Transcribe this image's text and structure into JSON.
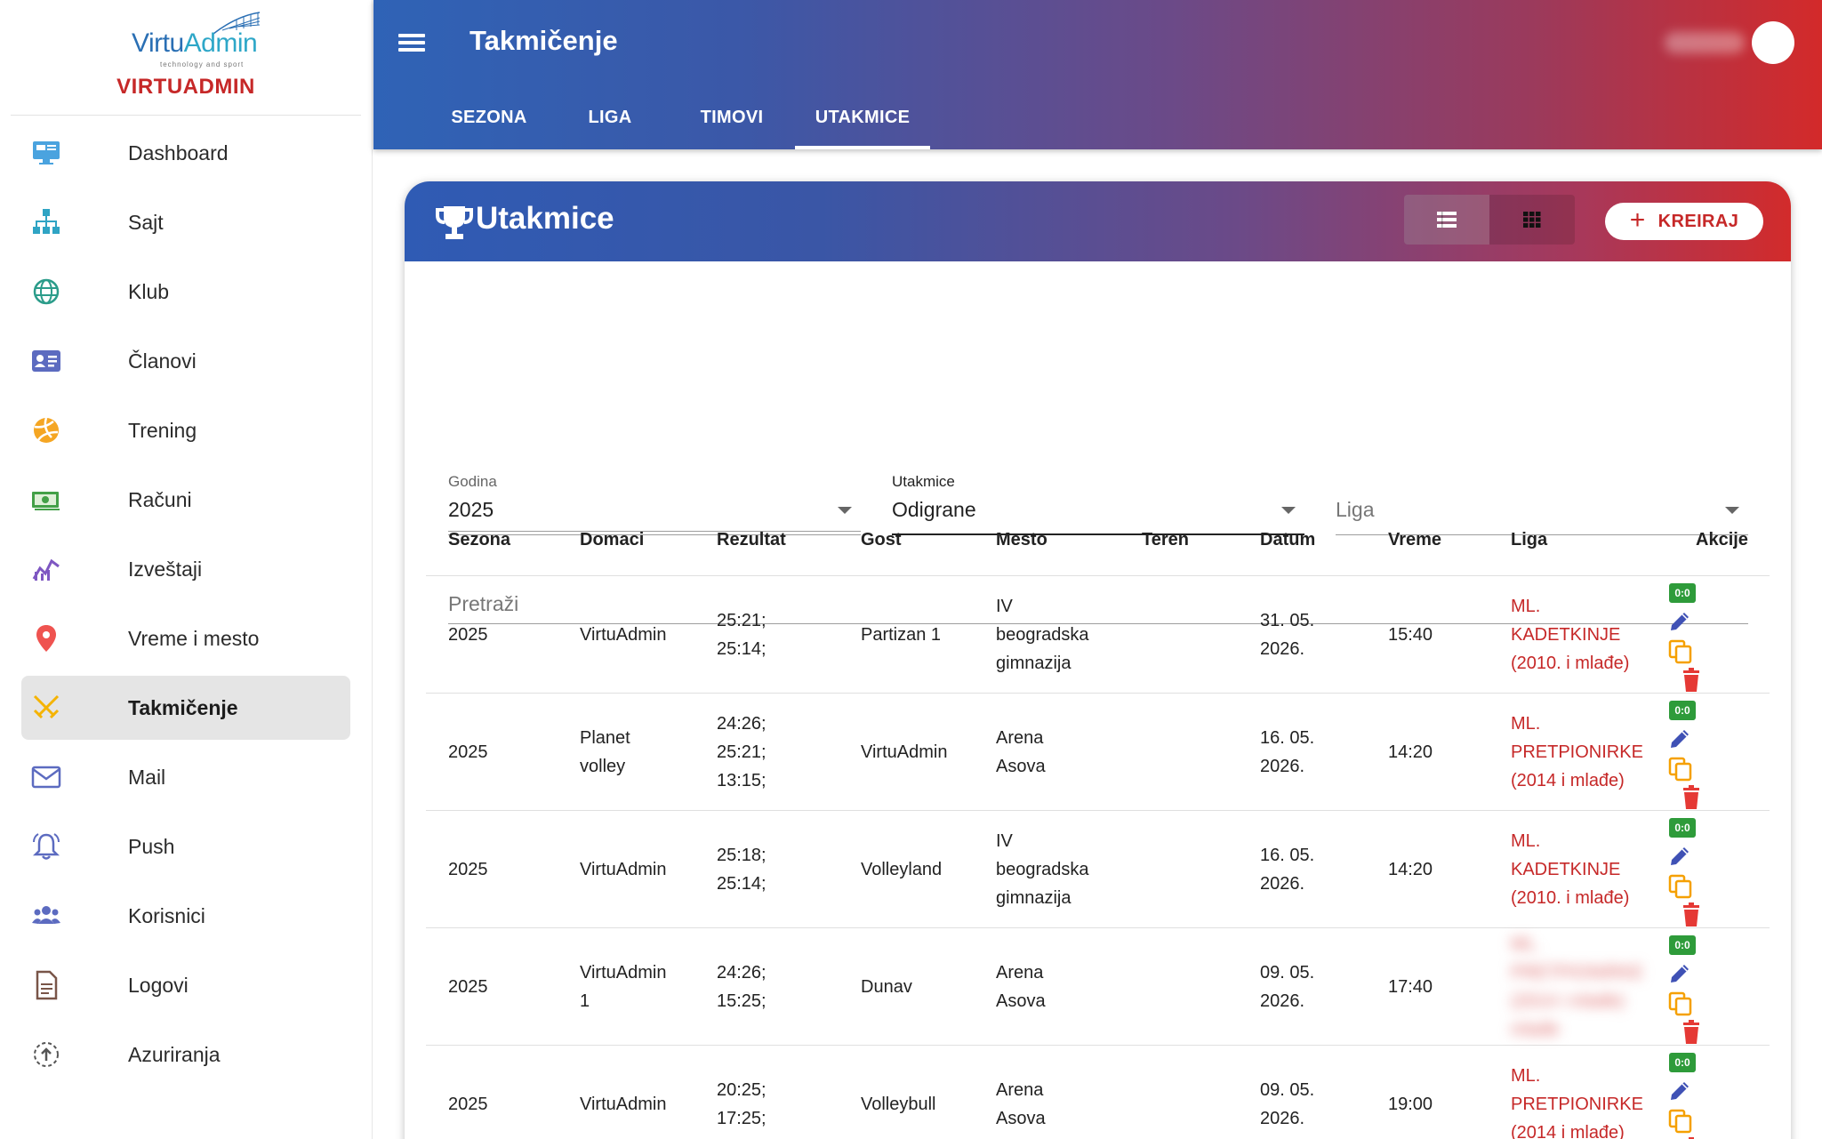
{
  "brand": {
    "logo_text_a": "Virtu",
    "logo_text_b": "Admin",
    "logo_tagline": "technology and sport",
    "name": "VIRTUADMIN"
  },
  "sidebar": {
    "items": [
      {
        "label": "Dashboard",
        "icon": "monitor-icon",
        "color": "#4aa3df"
      },
      {
        "label": "Sajt",
        "icon": "sitemap-icon",
        "color": "#2fa4c4"
      },
      {
        "label": "Klub",
        "icon": "globe-icon",
        "color": "#2b9c8a"
      },
      {
        "label": "Članovi",
        "icon": "id-card-icon",
        "color": "#5c6bc0"
      },
      {
        "label": "Trening",
        "icon": "volleyball-icon",
        "color": "#f5a623"
      },
      {
        "label": "Računi",
        "icon": "money-icon",
        "color": "#43a047"
      },
      {
        "label": "Izveštaji",
        "icon": "chart-icon",
        "color": "#7e57c2"
      },
      {
        "label": "Vreme i mesto",
        "icon": "location-pin-icon",
        "color": "#ef5350"
      },
      {
        "label": "Takmičenje",
        "icon": "crossed-swords-icon",
        "color": "#f5b300"
      },
      {
        "label": "Mail",
        "icon": "mail-icon",
        "color": "#5c6bc0"
      },
      {
        "label": "Push",
        "icon": "bell-icon",
        "color": "#5c6bc0"
      },
      {
        "label": "Korisnici",
        "icon": "users-icon",
        "color": "#5c6bc0"
      },
      {
        "label": "Logovi",
        "icon": "document-icon",
        "color": "#795548"
      },
      {
        "label": "Azuriranja",
        "icon": "update-icon",
        "color": "#555"
      }
    ],
    "active_index": 8
  },
  "header": {
    "title": "Takmičenje",
    "tabs": [
      "SEZONA",
      "LIGA",
      "TIMOVI",
      "UTAKMICE"
    ],
    "active_tab": "UTAKMICE"
  },
  "card": {
    "title": "Utakmice",
    "create_label": "KREIRAJ"
  },
  "filters": {
    "year": {
      "label": "Godina",
      "value": "2025"
    },
    "matches": {
      "label": "Utakmice",
      "value": "Odigrane"
    },
    "league": {
      "placeholder": "Liga"
    },
    "search": {
      "placeholder": "Pretraži"
    }
  },
  "table": {
    "columns": [
      "Sezona",
      "Domaci",
      "Rezultat",
      "Gost",
      "Mesto",
      "Teren",
      "Datum",
      "Vreme",
      "Liga",
      "Akcije"
    ],
    "rows": [
      {
        "sezona": "2025",
        "domaci": [
          "VirtuAdmin"
        ],
        "rezultat": [
          "25:21;",
          "25:14;"
        ],
        "gost": [
          "Partizan 1"
        ],
        "mesto": [
          "IV",
          "beogradska",
          "gimnazija"
        ],
        "teren": "",
        "datum": [
          "31. 05.",
          "2026."
        ],
        "vreme": "15:40",
        "liga": [
          "ML.",
          "KADETKINJE",
          "(2010. i mlađe)"
        ],
        "liga_blurred": false
      },
      {
        "sezona": "2025",
        "domaci": [
          "Planet",
          "volley"
        ],
        "rezultat": [
          "24:26;",
          "25:21;",
          "13:15;"
        ],
        "gost": [
          "VirtuAdmin"
        ],
        "mesto": [
          "Arena",
          "Asova"
        ],
        "teren": "",
        "datum": [
          "16. 05.",
          "2026."
        ],
        "vreme": "14:20",
        "liga": [
          "ML.",
          "PRETPIONIRKE",
          "(2014 i mlađe)"
        ],
        "liga_blurred": false
      },
      {
        "sezona": "2025",
        "domaci": [
          "VirtuAdmin"
        ],
        "rezultat": [
          "25:18;",
          "25:14;"
        ],
        "gost": [
          "Volleyland"
        ],
        "mesto": [
          "IV",
          "beogradska",
          "gimnazija"
        ],
        "teren": "",
        "datum": [
          "16. 05.",
          "2026."
        ],
        "vreme": "14:20",
        "liga": [
          "ML.",
          "KADETKINJE",
          "(2010. i mlađe)"
        ],
        "liga_blurred": false
      },
      {
        "sezona": "2025",
        "domaci": [
          "VirtuAdmin",
          "1"
        ],
        "rezultat": [
          "24:26;",
          "15:25;"
        ],
        "gost": [
          "Dunav"
        ],
        "mesto": [
          "Arena",
          "Asova"
        ],
        "teren": "",
        "datum": [
          "09. 05.",
          "2026."
        ],
        "vreme": "17:40",
        "liga": [
          "ML.",
          "PRETPIONIRKE",
          "(2014 i mlađe)",
          "mlađe"
        ],
        "liga_blurred": true
      },
      {
        "sezona": "2025",
        "domaci": [
          "VirtuAdmin"
        ],
        "rezultat": [
          "20:25;",
          "17:25;"
        ],
        "gost": [
          "Volleybull"
        ],
        "mesto": [
          "Arena",
          "Asova"
        ],
        "teren": "",
        "datum": [
          "09. 05.",
          "2026."
        ],
        "vreme": "19:00",
        "liga": [
          "ML.",
          "PRETPIONIRKE",
          "(2014 i mlađe)"
        ],
        "liga_blurred": false
      }
    ],
    "score_badge": "0:0"
  },
  "colors": {
    "accent_red": "#c62828",
    "header_blue": "#2f63b6",
    "header_red": "#d32a2a",
    "edit_blue": "#3f51b5",
    "copy_orange": "#f5a000",
    "delete_red": "#e53935",
    "score_green": "#2e9b3a"
  }
}
